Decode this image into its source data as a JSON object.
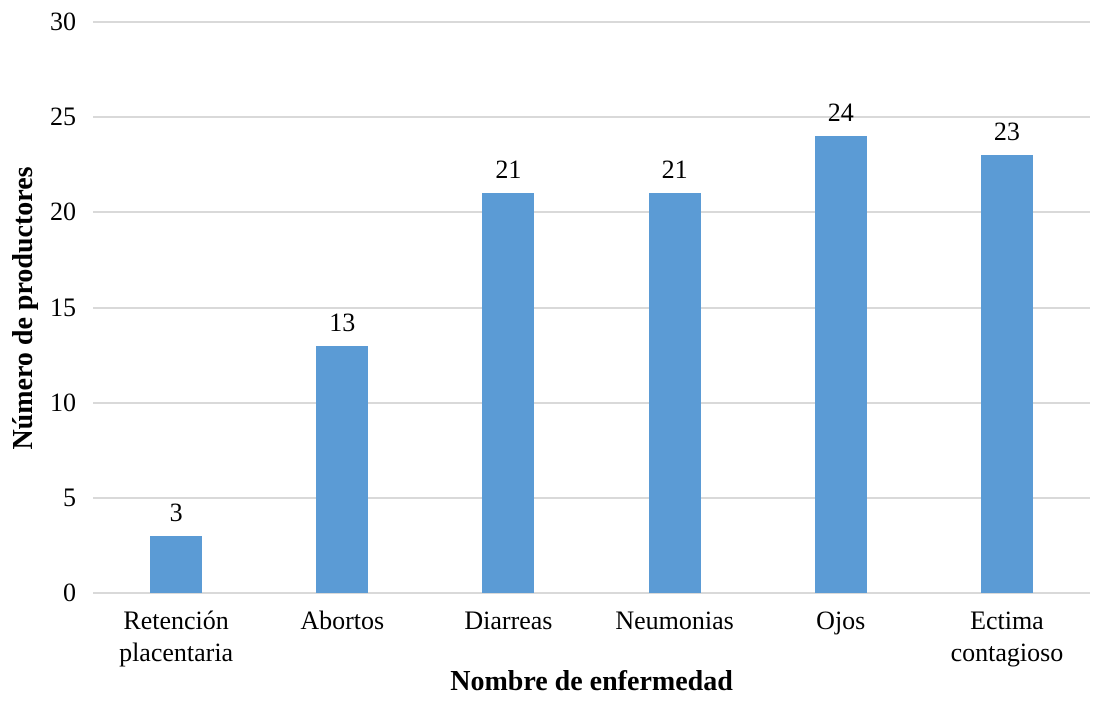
{
  "chart_data": {
    "type": "bar",
    "title": "",
    "xlabel": "Nombre de enfermedad",
    "ylabel": "Número de productores",
    "categories": [
      "Retención placentaria",
      "Abortos",
      "Diarreas",
      "Neumonias",
      "Ojos",
      "Ectima contagioso"
    ],
    "values": [
      3,
      13,
      21,
      21,
      24,
      23
    ],
    "ylim": [
      0,
      30
    ],
    "yticks": [
      0,
      5,
      10,
      15,
      20,
      25,
      30
    ],
    "grid": true,
    "legend": "none",
    "colors": {
      "bar": "#5B9BD5",
      "gridline": "#D9D9D9",
      "text": "#000000",
      "background": "#FFFFFF"
    }
  }
}
